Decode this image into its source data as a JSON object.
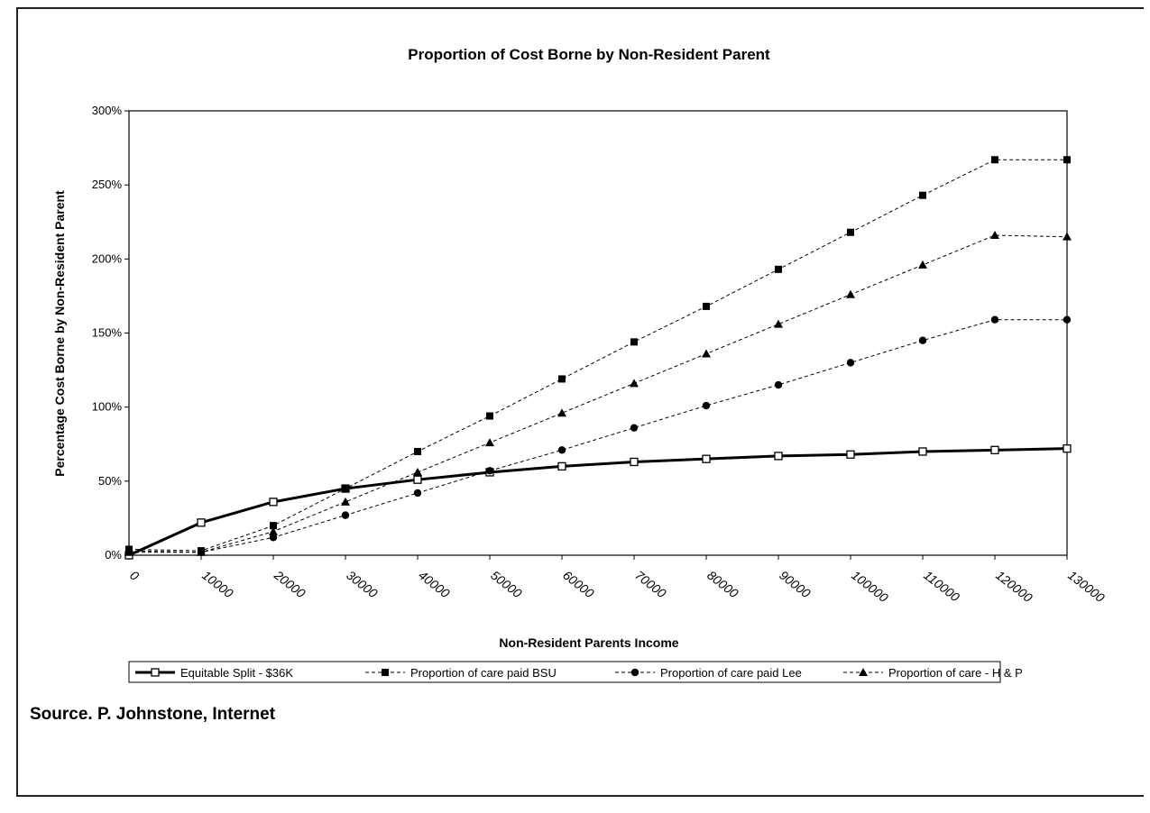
{
  "chart_data": {
    "type": "line",
    "title": "Proportion of Cost Borne by Non-Resident Parent",
    "xlabel": "Non-Resident Parents Income",
    "ylabel": "Percentage Cost Borne by Non-Resident Parent",
    "x": [
      0,
      10000,
      20000,
      30000,
      40000,
      50000,
      60000,
      70000,
      80000,
      90000,
      100000,
      110000,
      120000,
      130000
    ],
    "x_tick_labels": [
      "0",
      "10000",
      "20000",
      "30000",
      "40000",
      "50000",
      "60000",
      "70000",
      "80000",
      "90000",
      "100000",
      "110000",
      "120000",
      "130000"
    ],
    "y_tick_labels": [
      "0%",
      "50%",
      "100%",
      "150%",
      "200%",
      "250%",
      "300%"
    ],
    "ylim": [
      0,
      300
    ],
    "y_unit": "%",
    "grid": false,
    "legend_position": "bottom",
    "series": [
      {
        "name": "Equitable Split - $36K",
        "marker": "open-square",
        "style": "solid-thick",
        "color": "#000000",
        "values": [
          0,
          22,
          36,
          45,
          51,
          56,
          60,
          63,
          65,
          67,
          68,
          70,
          71,
          72
        ]
      },
      {
        "name": "Proportion of care paid BSU",
        "marker": "filled-square",
        "style": "dashed",
        "color": "#000000",
        "values": [
          4,
          3,
          20,
          45,
          70,
          94,
          119,
          144,
          168,
          193,
          218,
          243,
          267,
          267
        ]
      },
      {
        "name": "Proportion of care paid Lee",
        "marker": "filled-circle",
        "style": "dashed",
        "color": "#000000",
        "values": [
          3,
          2,
          12,
          27,
          42,
          57,
          71,
          86,
          101,
          115,
          130,
          145,
          159,
          159
        ]
      },
      {
        "name": "Proportion of care - H & P",
        "marker": "filled-triangle",
        "style": "dashed",
        "color": "#000000",
        "values": [
          2,
          2,
          16,
          36,
          56,
          76,
          96,
          116,
          136,
          156,
          176,
          196,
          216,
          215
        ]
      }
    ]
  },
  "source_text": "Source. P. Johnstone, Internet"
}
